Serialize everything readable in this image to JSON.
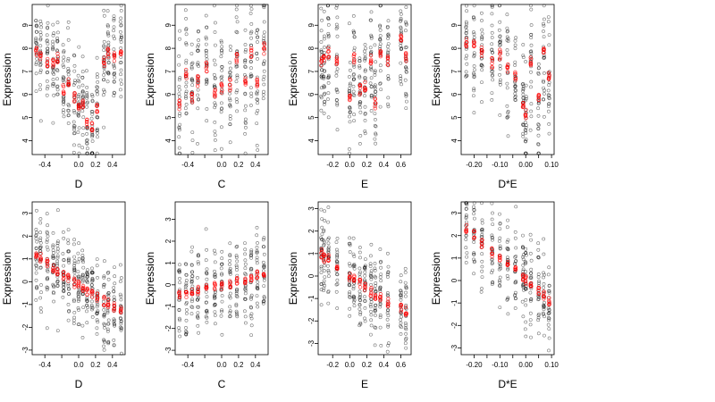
{
  "chart_data": [
    {
      "type": "scatter",
      "xlabel": "D",
      "ylabel": "Expression",
      "xlim": [
        -0.55,
        0.55
      ],
      "ylim": [
        3.4,
        9.9
      ],
      "xticks": [
        -0.4,
        -0.2,
        0.0,
        0.2,
        0.4
      ],
      "xtick_labels": [
        "-0.4",
        "",
        "0.0",
        "0.2",
        "0.4"
      ],
      "yticks": [
        4,
        5,
        6,
        7,
        8,
        9
      ],
      "ytick_labels": [
        "4",
        "5",
        "6",
        "7",
        "8",
        "9"
      ],
      "columns": [
        -0.5,
        -0.45,
        -0.37,
        -0.3,
        -0.25,
        -0.18,
        -0.12,
        -0.05,
        0.0,
        0.05,
        0.1,
        0.16,
        0.22,
        0.3,
        0.35,
        0.42,
        0.5
      ],
      "spread": 1.2,
      "series": [
        {
          "values": [
            [
              -0.5,
              7.9
            ],
            [
              -0.45,
              7.7
            ],
            [
              -0.37,
              7.4
            ],
            [
              -0.3,
              7.3
            ],
            [
              -0.25,
              7.6
            ],
            [
              -0.18,
              6.2
            ],
            [
              -0.12,
              6.6
            ],
            [
              -0.05,
              5.9
            ],
            [
              0.0,
              5.4
            ],
            [
              0.05,
              5.6
            ],
            [
              0.1,
              4.8
            ],
            [
              0.16,
              4.6
            ],
            [
              0.22,
              5.4
            ],
            [
              0.3,
              7.4
            ],
            [
              0.35,
              7.8
            ],
            [
              0.42,
              7.6
            ],
            [
              0.5,
              7.9
            ]
          ],
          "color": "#ff0000"
        }
      ]
    },
    {
      "type": "scatter",
      "xlabel": "C",
      "ylabel": "Expression",
      "xlim": [
        -0.55,
        0.55
      ],
      "ylim": [
        3.4,
        9.9
      ],
      "xticks": [
        -0.4,
        -0.2,
        0.0,
        0.2,
        0.4
      ],
      "xtick_labels": [
        "-0.4",
        "",
        "0.0",
        "0.2",
        "0.4"
      ],
      "yticks": [
        4,
        5,
        6,
        7,
        8,
        9
      ],
      "ytick_labels": [
        "4",
        "5",
        "6",
        "7",
        "8",
        "9"
      ],
      "columns": [
        -0.5,
        -0.42,
        -0.35,
        -0.28,
        -0.18,
        -0.08,
        0.0,
        0.1,
        0.18,
        0.28,
        0.35,
        0.42,
        0.5
      ],
      "spread": 1.5,
      "series": [
        {
          "values": [
            [
              -0.5,
              5.5
            ],
            [
              -0.42,
              6.9
            ],
            [
              -0.35,
              5.8
            ],
            [
              -0.28,
              6.6
            ],
            [
              -0.18,
              7.2
            ],
            [
              -0.08,
              6.0
            ],
            [
              0.0,
              6.3
            ],
            [
              0.1,
              6.4
            ],
            [
              0.18,
              7.5
            ],
            [
              0.28,
              6.5
            ],
            [
              0.35,
              7.8
            ],
            [
              0.42,
              6.6
            ],
            [
              0.5,
              8.0
            ]
          ],
          "color": "#ff0000"
        }
      ]
    },
    {
      "type": "scatter",
      "xlabel": "E",
      "ylabel": "Expression",
      "xlim": [
        -0.37,
        0.72
      ],
      "ylim": [
        3.4,
        9.9
      ],
      "xticks": [
        -0.2,
        0.0,
        0.2,
        0.4,
        0.6
      ],
      "xtick_labels": [
        "-0.2",
        "0.0",
        "0.2",
        "0.4",
        "0.6"
      ],
      "yticks": [
        4,
        5,
        6,
        7,
        8,
        9
      ],
      "ytick_labels": [
        "4",
        "5",
        "6",
        "7",
        "8",
        "9"
      ],
      "columns": [
        -0.33,
        -0.3,
        -0.25,
        -0.15,
        0.0,
        0.05,
        0.12,
        0.18,
        0.25,
        0.3,
        0.36,
        0.45,
        0.6,
        0.66
      ],
      "spread": 1.3,
      "series": [
        {
          "values": [
            [
              -0.33,
              7.4
            ],
            [
              -0.3,
              7.6
            ],
            [
              -0.25,
              7.8
            ],
            [
              -0.15,
              7.4
            ],
            [
              0.0,
              5.8
            ],
            [
              0.05,
              7.6
            ],
            [
              0.12,
              6.2
            ],
            [
              0.18,
              6.4
            ],
            [
              0.25,
              7.5
            ],
            [
              0.3,
              5.6
            ],
            [
              0.36,
              7.8
            ],
            [
              0.45,
              7.5
            ],
            [
              0.6,
              8.4
            ],
            [
              0.66,
              7.6
            ]
          ],
          "color": "#ff0000"
        }
      ]
    },
    {
      "type": "scatter",
      "xlabel": "D*E",
      "ylabel": "Expression",
      "xlim": [
        -0.25,
        0.11
      ],
      "ylim": [
        3.4,
        9.9
      ],
      "xticks": [
        -0.2,
        -0.1,
        0.0,
        0.1
      ],
      "xtick_labels": [
        "-0.20",
        "-0.10",
        "0.00",
        "0.10"
      ],
      "extra_ticks": [
        -0.15,
        -0.05,
        0.05
      ],
      "extra_tick_labels": [
        "",
        "",
        ""
      ],
      "yticks": [
        4,
        5,
        6,
        7,
        8,
        9
      ],
      "ytick_labels": [
        "4",
        "5",
        "6",
        "7",
        "8",
        "9"
      ],
      "columns": [
        -0.23,
        -0.2,
        -0.17,
        -0.13,
        -0.1,
        -0.07,
        -0.04,
        -0.01,
        0.0,
        0.02,
        0.05,
        0.07,
        0.09
      ],
      "spread": 1.4,
      "series": [
        {
          "values": [
            [
              -0.23,
              8.3
            ],
            [
              -0.2,
              8.2
            ],
            [
              -0.17,
              7.9
            ],
            [
              -0.13,
              7.4
            ],
            [
              -0.1,
              7.7
            ],
            [
              -0.07,
              7.2
            ],
            [
              -0.04,
              6.8
            ],
            [
              -0.01,
              5.6
            ],
            [
              0.0,
              5.2
            ],
            [
              0.02,
              7.4
            ],
            [
              0.05,
              5.8
            ],
            [
              0.07,
              7.8
            ],
            [
              0.09,
              6.7
            ]
          ],
          "color": "#ff0000"
        }
      ]
    },
    {
      "type": "scatter",
      "xlabel": "D",
      "ylabel": "Expression",
      "xlim": [
        -0.55,
        0.55
      ],
      "ylim": [
        -3.2,
        3.5
      ],
      "xticks": [
        -0.4,
        -0.2,
        0.0,
        0.2,
        0.4
      ],
      "xtick_labels": [
        "-0.4",
        "",
        "0.0",
        "0.2",
        "0.4"
      ],
      "yticks": [
        -3,
        -2,
        -1,
        0,
        1,
        2,
        3
      ],
      "ytick_labels": [
        "-3",
        "-2",
        "-1",
        "0",
        "1",
        "2",
        "3"
      ],
      "columns": [
        -0.5,
        -0.45,
        -0.37,
        -0.3,
        -0.25,
        -0.18,
        -0.12,
        -0.05,
        0.0,
        0.05,
        0.1,
        0.16,
        0.22,
        0.3,
        0.35,
        0.42,
        0.5
      ],
      "spread": 1.1,
      "series": [
        {
          "values": [
            [
              -0.5,
              1.15
            ],
            [
              -0.45,
              1.05
            ],
            [
              -0.37,
              0.8
            ],
            [
              -0.3,
              0.6
            ],
            [
              -0.25,
              0.45
            ],
            [
              -0.18,
              0.25
            ],
            [
              -0.12,
              0.12
            ],
            [
              -0.05,
              -0.05
            ],
            [
              0.0,
              -0.15
            ],
            [
              0.05,
              -0.3
            ],
            [
              0.1,
              -0.4
            ],
            [
              0.16,
              -0.5
            ],
            [
              0.22,
              -0.65
            ],
            [
              0.3,
              -0.85
            ],
            [
              0.35,
              -0.95
            ],
            [
              0.42,
              -1.1
            ],
            [
              0.5,
              -1.25
            ]
          ],
          "color": "#ff0000"
        }
      ]
    },
    {
      "type": "scatter",
      "xlabel": "C",
      "ylabel": "Expression",
      "xlim": [
        -0.55,
        0.55
      ],
      "ylim": [
        -3.2,
        3.8
      ],
      "xticks": [
        -0.4,
        -0.2,
        0.0,
        0.2,
        0.4
      ],
      "xtick_labels": [
        "-0.4",
        "",
        "0.0",
        "0.2",
        "0.4"
      ],
      "yticks": [
        -3,
        -2,
        -1,
        0,
        1,
        2,
        3
      ],
      "ytick_labels": [
        "-3",
        "-2",
        "-1",
        "0",
        "1",
        "2",
        "3"
      ],
      "columns": [
        -0.5,
        -0.42,
        -0.35,
        -0.28,
        -0.18,
        -0.08,
        0.0,
        0.1,
        0.18,
        0.28,
        0.35,
        0.42,
        0.5
      ],
      "spread": 1.1,
      "series": [
        {
          "values": [
            [
              -0.5,
              -0.5
            ],
            [
              -0.42,
              -0.45
            ],
            [
              -0.35,
              -0.35
            ],
            [
              -0.28,
              -0.25
            ],
            [
              -0.18,
              -0.15
            ],
            [
              -0.08,
              -0.08
            ],
            [
              0.0,
              -0.05
            ],
            [
              0.1,
              0.05
            ],
            [
              0.18,
              0.15
            ],
            [
              0.28,
              0.25
            ],
            [
              0.35,
              0.35
            ],
            [
              0.42,
              0.45
            ],
            [
              0.5,
              0.55
            ]
          ],
          "color": "#ff0000"
        }
      ]
    },
    {
      "type": "scatter",
      "xlabel": "E",
      "ylabel": "Expression",
      "xlim": [
        -0.37,
        0.72
      ],
      "ylim": [
        -3.5,
        3.3
      ],
      "xticks": [
        -0.2,
        0.0,
        0.2,
        0.4,
        0.6
      ],
      "xtick_labels": [
        "-0.2",
        "0.0",
        "0.2",
        "0.4",
        "0.6"
      ],
      "yticks": [
        -3,
        -2,
        -1,
        0,
        1,
        2,
        3
      ],
      "ytick_labels": [
        "-3",
        "-2",
        "-1",
        "0",
        "1",
        "2",
        "3"
      ],
      "columns": [
        -0.33,
        -0.3,
        -0.25,
        -0.15,
        0.0,
        0.05,
        0.12,
        0.18,
        0.25,
        0.3,
        0.36,
        0.45,
        0.6,
        0.66
      ],
      "spread": 1.1,
      "series": [
        {
          "values": [
            [
              -0.33,
              1.0
            ],
            [
              -0.3,
              0.8
            ],
            [
              -0.25,
              0.75
            ],
            [
              -0.15,
              0.5
            ],
            [
              0.0,
              0.0
            ],
            [
              0.05,
              -0.15
            ],
            [
              0.12,
              -0.35
            ],
            [
              0.18,
              -0.5
            ],
            [
              0.25,
              -0.7
            ],
            [
              0.3,
              -0.85
            ],
            [
              0.36,
              -1.0
            ],
            [
              0.45,
              -1.15
            ],
            [
              0.6,
              -1.45
            ],
            [
              0.66,
              -1.55
            ]
          ],
          "color": "#ff0000"
        }
      ]
    },
    {
      "type": "scatter",
      "xlabel": "D*E",
      "ylabel": "Expression",
      "xlim": [
        -0.25,
        0.11
      ],
      "ylim": [
        -3.3,
        3.5
      ],
      "xticks": [
        -0.2,
        -0.1,
        0.0,
        0.1
      ],
      "xtick_labels": [
        "-0.20",
        "-0.10",
        "0.00",
        "0.10"
      ],
      "extra_ticks": [
        -0.15,
        -0.05,
        0.05
      ],
      "extra_tick_labels": [
        "",
        "",
        ""
      ],
      "yticks": [
        -3,
        -2,
        -1,
        0,
        1,
        2,
        3
      ],
      "ytick_labels": [
        "-3",
        "-2",
        "-1",
        "0",
        "1",
        "2",
        "3"
      ],
      "columns": [
        -0.23,
        -0.2,
        -0.17,
        -0.13,
        -0.1,
        -0.07,
        -0.04,
        -0.01,
        0.0,
        0.02,
        0.05,
        0.07,
        0.09
      ],
      "spread": 1.1,
      "series": [
        {
          "values": [
            [
              -0.23,
              2.3
            ],
            [
              -0.2,
              2.05
            ],
            [
              -0.17,
              1.65
            ],
            [
              -0.13,
              1.25
            ],
            [
              -0.1,
              1.05
            ],
            [
              -0.07,
              0.75
            ],
            [
              -0.04,
              0.45
            ],
            [
              -0.01,
              0.15
            ],
            [
              0.0,
              0.0
            ],
            [
              0.02,
              -0.15
            ],
            [
              0.05,
              -0.45
            ],
            [
              0.07,
              -0.65
            ],
            [
              0.09,
              -0.9
            ]
          ],
          "color": "#ff0000"
        }
      ]
    }
  ]
}
